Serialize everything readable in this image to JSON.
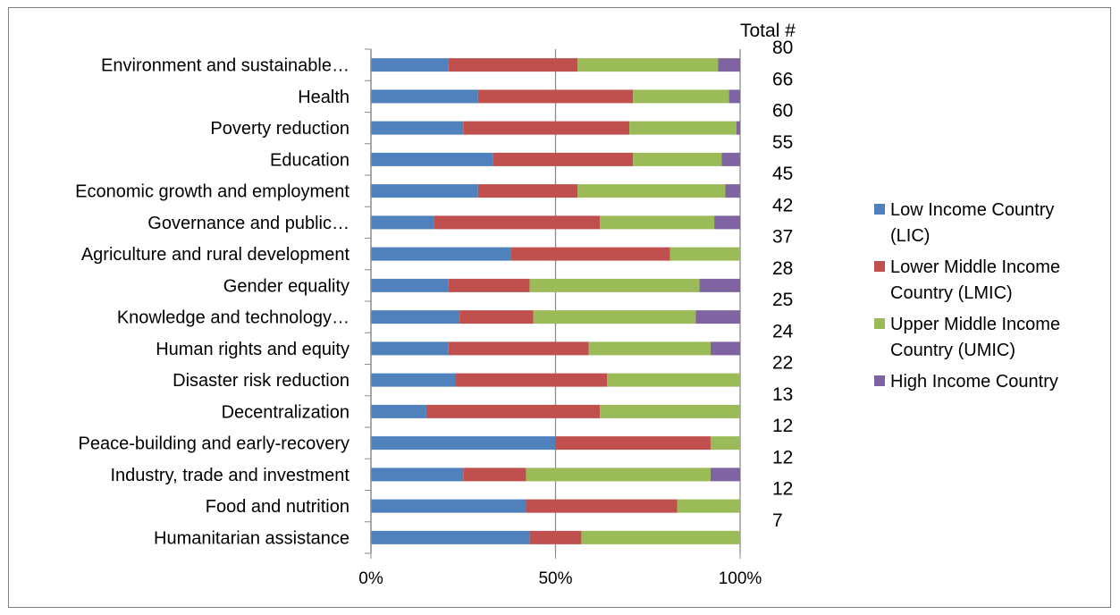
{
  "chart_data": {
    "type": "bar",
    "orientation": "horizontal",
    "stacked": "percent",
    "categories": [
      "Environment and sustainable…",
      "Health",
      "Poverty reduction",
      "Education",
      "Economic growth and employment",
      "Governance and public…",
      "Agriculture and rural development",
      "Gender equality",
      "Knowledge and technology…",
      "Human rights and equity",
      "Disaster risk reduction",
      "Decentralization",
      "Peace-building and early-recovery",
      "Industry, trade and investment",
      "Food and nutrition",
      "Humanitarian assistance"
    ],
    "series": [
      {
        "name": "Low Income Country (LIC)",
        "color": "#4f81bd",
        "values": [
          21,
          29,
          25,
          33,
          29,
          17,
          38,
          21,
          24,
          21,
          23,
          15,
          50,
          25,
          42,
          43
        ]
      },
      {
        "name": "Lower Middle Income Country (LMIC)",
        "color": "#c0504d",
        "values": [
          35,
          42,
          45,
          38,
          27,
          45,
          43,
          22,
          20,
          38,
          41,
          47,
          42,
          17,
          41,
          14
        ]
      },
      {
        "name": "Upper Middle Income Country (UMIC)",
        "color": "#9bbb59",
        "values": [
          38,
          26,
          29,
          24,
          40,
          31,
          19,
          46,
          44,
          33,
          36,
          38,
          8,
          50,
          17,
          43
        ]
      },
      {
        "name": "High Income Country",
        "color": "#8064a2",
        "values": [
          6,
          3,
          1,
          5,
          4,
          7,
          0,
          11,
          12,
          8,
          0,
          0,
          0,
          8,
          0,
          0
        ]
      }
    ],
    "totals_header": "Total #",
    "totals": [
      "80",
      "66",
      "60",
      "55",
      "45",
      "42",
      "37",
      "28",
      "25",
      "24",
      "22",
      "13",
      "12",
      "12",
      "12",
      "7"
    ],
    "x_ticks": [
      "0%",
      "50%",
      "100%"
    ],
    "xlim": [
      0,
      100
    ],
    "grid": true,
    "legend_position": "right",
    "title": "",
    "xlabel": "",
    "ylabel": ""
  }
}
